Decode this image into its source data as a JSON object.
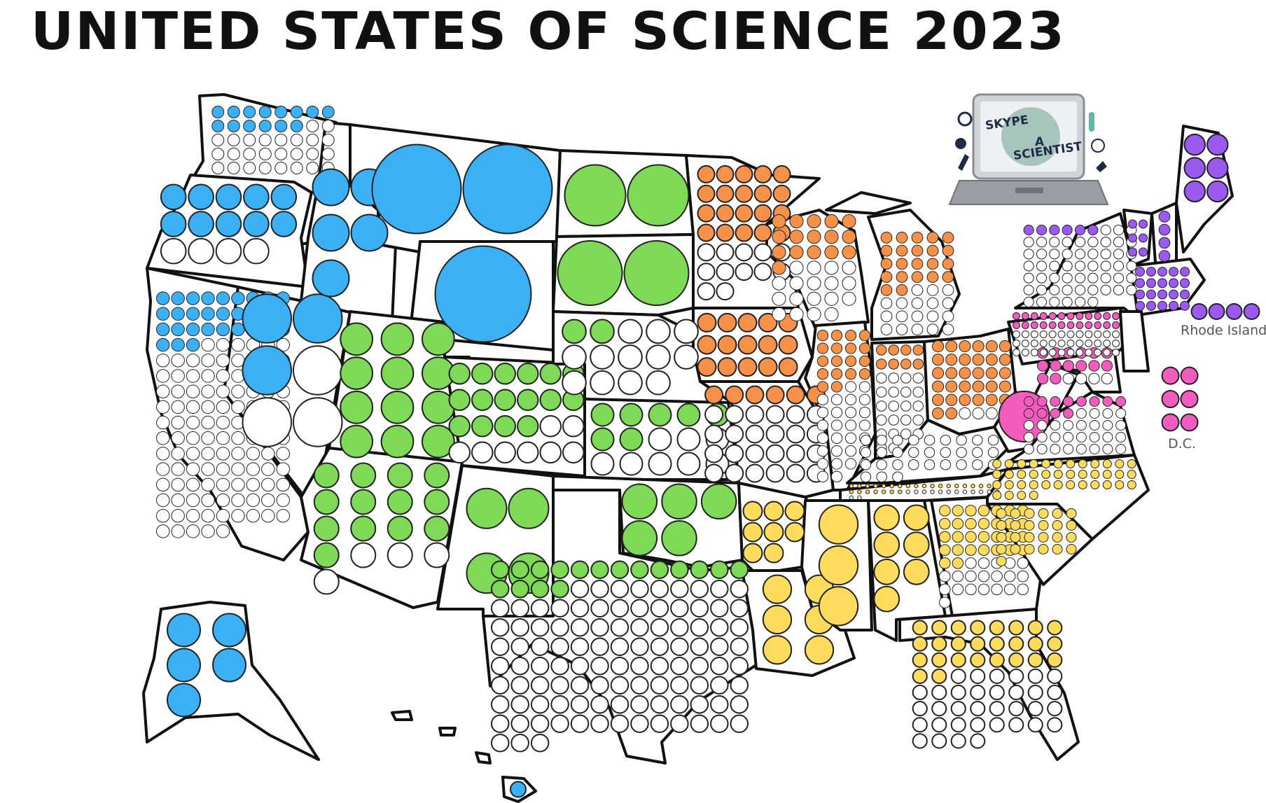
{
  "title": "UNITED STATES OF SCIENCE 2023",
  "logo": {
    "line1": "SKYPE",
    "line2": "A",
    "line3": "SCIENTIST"
  },
  "labels": {
    "rhode_island": "Rhode Island",
    "dc": "D.C."
  },
  "colors": {
    "west": "#3bb0f5",
    "mountain": "#7ed957",
    "midwest": "#f6914a",
    "south": "#fddb5c",
    "mid_atlantic": "#f35cbf",
    "new_england": "#9b59f0",
    "empty": "#ffffff"
  },
  "states": [
    {
      "name": "Washington",
      "region": "west",
      "filled": 14,
      "total": 40
    },
    {
      "name": "Oregon",
      "region": "west",
      "filled": 10,
      "total": 14
    },
    {
      "name": "California",
      "region": "west",
      "filled": 30,
      "total": 140
    },
    {
      "name": "Nevada",
      "region": "west",
      "filled": 3,
      "total": 6
    },
    {
      "name": "Idaho",
      "region": "west",
      "filled": 5,
      "total": 5
    },
    {
      "name": "Montana",
      "region": "west",
      "filled": 2,
      "total": 2
    },
    {
      "name": "Wyoming",
      "region": "west",
      "filled": 1,
      "total": 1
    },
    {
      "name": "Alaska",
      "region": "west",
      "filled": 5,
      "total": 5
    },
    {
      "name": "Hawaii",
      "region": "west",
      "filled": 1,
      "total": 1
    },
    {
      "name": "Utah",
      "region": "mountain",
      "filled": 12,
      "total": 12
    },
    {
      "name": "Colorado",
      "region": "mountain",
      "filled": 16,
      "total": 24
    },
    {
      "name": "Arizona",
      "region": "mountain",
      "filled": 13,
      "total": 17
    },
    {
      "name": "New Mexico",
      "region": "mountain",
      "filled": 4,
      "total": 4
    },
    {
      "name": "North Dakota",
      "region": "mountain",
      "filled": 2,
      "total": 2
    },
    {
      "name": "South Dakota",
      "region": "mountain",
      "filled": 2,
      "total": 2
    },
    {
      "name": "Nebraska",
      "region": "mountain",
      "filled": 2,
      "total": 14
    },
    {
      "name": "Kansas",
      "region": "mountain",
      "filled": 7,
      "total": 15
    },
    {
      "name": "Oklahoma",
      "region": "mountain",
      "filled": 5,
      "total": 5
    },
    {
      "name": "Texas",
      "region": "mountain",
      "filled": 17,
      "total": 120
    },
    {
      "name": "Minnesota",
      "region": "midwest",
      "filled": 20,
      "total": 32
    },
    {
      "name": "Iowa",
      "region": "midwest",
      "filled": 15,
      "total": 15
    },
    {
      "name": "Missouri",
      "region": "midwest",
      "filled": 6,
      "total": 30
    },
    {
      "name": "Wisconsin",
      "region": "midwest",
      "filled": 16,
      "total": 34
    },
    {
      "name": "Illinois",
      "region": "midwest",
      "filled": 18,
      "total": 46
    },
    {
      "name": "Michigan",
      "region": "midwest",
      "filled": 22,
      "total": 40
    },
    {
      "name": "Indiana",
      "region": "midwest",
      "filled": 8,
      "total": 30
    },
    {
      "name": "Ohio",
      "region": "midwest",
      "filled": 32,
      "total": 36
    },
    {
      "name": "Kentucky",
      "region": "south",
      "filled": 0,
      "total": 30
    },
    {
      "name": "Tennessee",
      "region": "south",
      "filled": 26,
      "total": 40
    },
    {
      "name": "Arkansas",
      "region": "south",
      "filled": 8,
      "total": 8
    },
    {
      "name": "Louisiana",
      "region": "south",
      "filled": 6,
      "total": 6
    },
    {
      "name": "Mississippi",
      "region": "south",
      "filled": 3,
      "total": 3
    },
    {
      "name": "Alabama",
      "region": "south",
      "filled": 7,
      "total": 7
    },
    {
      "name": "Georgia",
      "region": "south",
      "filled": 30,
      "total": 50
    },
    {
      "name": "Florida",
      "region": "south",
      "filled": 26,
      "total": 60
    },
    {
      "name": "South Carolina",
      "region": "south",
      "filled": 25,
      "total": 25
    },
    {
      "name": "North Carolina",
      "region": "south",
      "filled": 40,
      "total": 40
    },
    {
      "name": "West Virginia",
      "region": "mid_atlantic",
      "filled": 1,
      "total": 1
    },
    {
      "name": "Virginia",
      "region": "mid_atlantic",
      "filled": 12,
      "total": 40
    },
    {
      "name": "Maryland",
      "region": "mid_atlantic",
      "filled": 14,
      "total": 18
    },
    {
      "name": "Pennsylvania",
      "region": "mid_atlantic",
      "filled": 24,
      "total": 60
    },
    {
      "name": "D.C.",
      "region": "mid_atlantic",
      "filled": 6,
      "total": 6
    },
    {
      "name": "New York",
      "region": "new_england",
      "filled": 6,
      "total": 60
    },
    {
      "name": "Vermont",
      "region": "new_england",
      "filled": 6,
      "total": 6
    },
    {
      "name": "New Hampshire",
      "region": "new_england",
      "filled": 4,
      "total": 4
    },
    {
      "name": "Maine",
      "region": "new_england",
      "filled": 6,
      "total": 6
    },
    {
      "name": "Massachusetts",
      "region": "new_england",
      "filled": 20,
      "total": 20
    },
    {
      "name": "Rhode Island",
      "region": "new_england",
      "filled": 4,
      "total": 4
    }
  ]
}
